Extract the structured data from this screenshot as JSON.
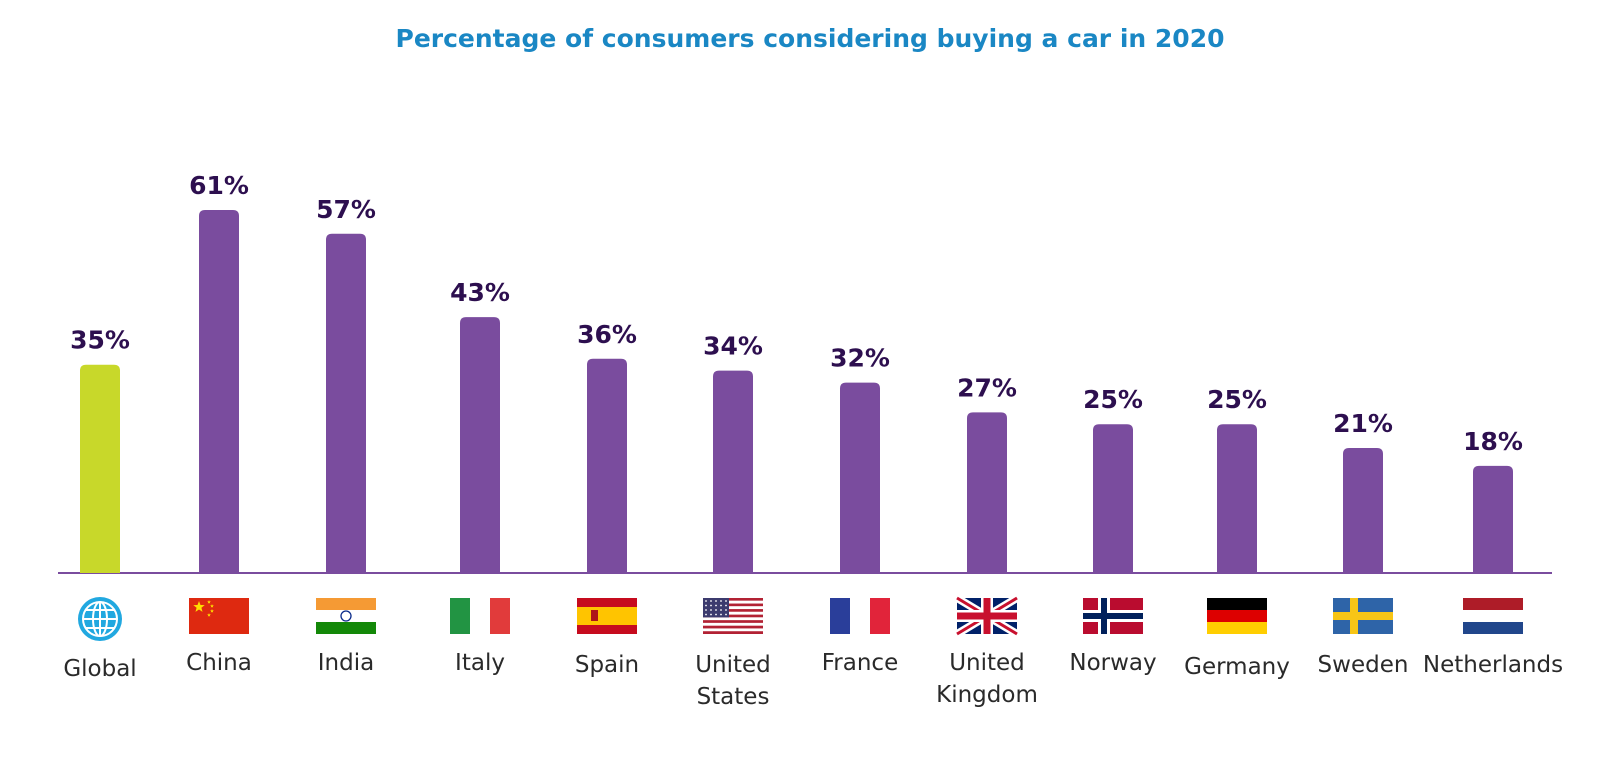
{
  "chart_data": {
    "type": "bar",
    "title": "Percentage of consumers considering buying a car in 2020",
    "xlabel": "",
    "ylabel": "",
    "ylim": [
      0,
      61
    ],
    "grid": false,
    "legend": "none",
    "categories": [
      "Global",
      "China",
      "India",
      "Italy",
      "Spain",
      "United States",
      "France",
      "United Kingdom",
      "Norway",
      "Germany",
      "Sweden",
      "Netherlands"
    ],
    "category_lines": [
      [
        "Global"
      ],
      [
        "China"
      ],
      [
        "India"
      ],
      [
        "Italy"
      ],
      [
        "Spain"
      ],
      [
        "United",
        "States"
      ],
      [
        "France"
      ],
      [
        "United",
        "Kingdom"
      ],
      [
        "Norway"
      ],
      [
        "Germany"
      ],
      [
        "Sweden"
      ],
      [
        "Netherlands"
      ]
    ],
    "values": [
      35,
      61,
      57,
      43,
      36,
      34,
      32,
      27,
      25,
      25,
      21,
      18
    ],
    "value_labels": [
      "35%",
      "61%",
      "57%",
      "43%",
      "36%",
      "34%",
      "32%",
      "27%",
      "25%",
      "25%",
      "21%",
      "18%"
    ],
    "flags": [
      "globe-icon",
      "china-flag-icon",
      "india-flag-icon",
      "italy-flag-icon",
      "spain-flag-icon",
      "united-states-flag-icon",
      "france-flag-icon",
      "united-kingdom-flag-icon",
      "norway-flag-icon",
      "germany-flag-icon",
      "sweden-flag-icon",
      "netherlands-flag-icon"
    ]
  },
  "colors": {
    "title": "#1a87c4",
    "highlight_bar": "#c8d82a",
    "bar": "#7a4c9e",
    "value_label": "#2d0f4f",
    "axis": "#7a4c9e",
    "globe": "#21a8e0"
  }
}
